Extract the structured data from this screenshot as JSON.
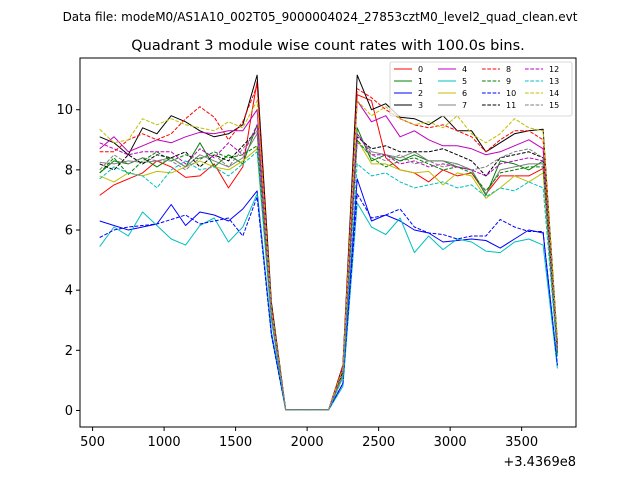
{
  "suptitle": "Data file: modeM0/AS1A10_002T05_9000004024_27853cztM0_level2_quad_clean.evt",
  "chart_data": {
    "type": "line",
    "title": "Quadrant 3 module wise count rates with 100.0s bins.",
    "xlabel": "",
    "ylabel": "",
    "x_offset_label": "+3.4369e8",
    "xlim": [
      412,
      3880
    ],
    "ylim": [
      -0.55,
      11.72
    ],
    "xticks": [
      500,
      1000,
      1500,
      2000,
      2500,
      3000,
      3500
    ],
    "xtick_labels": [
      "500",
      "1000",
      "1500",
      "2000",
      "2500",
      "3000",
      "3500"
    ],
    "yticks": [
      0,
      2,
      4,
      6,
      8,
      10
    ],
    "ytick_labels": [
      "0",
      "2",
      "4",
      "6",
      "8",
      "10"
    ],
    "grid": false,
    "legend_position": "top-right",
    "x": [
      550,
      650,
      750,
      850,
      950,
      1050,
      1150,
      1250,
      1350,
      1450,
      1550,
      1650,
      1750,
      1850,
      1950,
      2050,
      2150,
      2250,
      2350,
      2450,
      2550,
      2650,
      2750,
      2850,
      2950,
      3050,
      3150,
      3250,
      3350,
      3450,
      3550,
      3650,
      3750
    ],
    "series": [
      {
        "name": "0",
        "color": "#ff0000",
        "dash": "solid",
        "values": [
          7.15,
          7.5,
          7.7,
          7.9,
          8.3,
          8.1,
          7.75,
          7.8,
          8.2,
          7.4,
          8.1,
          10.95,
          3.4,
          0.02,
          0.02,
          0.02,
          0.02,
          1.4,
          10.5,
          10.3,
          8.4,
          8.0,
          7.9,
          7.6,
          8.0,
          7.8,
          7.9,
          7.2,
          7.8,
          7.8,
          7.8,
          8.05,
          2.1
        ]
      },
      {
        "name": "1",
        "color": "#008000",
        "dash": "solid",
        "values": [
          7.9,
          8.3,
          8.2,
          8.4,
          8.1,
          8.4,
          8.1,
          8.9,
          8.1,
          8.5,
          8.2,
          9.5,
          3.1,
          0.02,
          0.02,
          0.02,
          0.02,
          1.2,
          9.4,
          8.3,
          8.5,
          8.3,
          8.5,
          8.3,
          8.3,
          8.1,
          8.0,
          7.15,
          8.3,
          8.2,
          8.0,
          8.3,
          1.9
        ]
      },
      {
        "name": "2",
        "color": "#0000ff",
        "dash": "solid",
        "values": [
          6.3,
          6.15,
          6.0,
          6.1,
          6.2,
          6.85,
          6.15,
          6.6,
          6.5,
          6.3,
          6.7,
          7.3,
          2.6,
          0.02,
          0.02,
          0.02,
          0.02,
          0.9,
          7.7,
          6.3,
          6.5,
          6.3,
          6.0,
          5.9,
          5.6,
          5.65,
          5.7,
          5.65,
          5.4,
          5.7,
          6.0,
          5.9,
          1.5
        ]
      },
      {
        "name": "3",
        "color": "#000000",
        "dash": "solid",
        "values": [
          9.1,
          8.9,
          8.5,
          9.4,
          9.2,
          9.8,
          9.6,
          9.3,
          9.1,
          9.2,
          9.5,
          11.15,
          3.6,
          0.02,
          0.02,
          0.02,
          0.02,
          1.5,
          11.15,
          10.0,
          10.2,
          9.75,
          9.7,
          9.5,
          9.8,
          9.3,
          9.3,
          8.6,
          8.9,
          9.2,
          9.3,
          9.35,
          2.3
        ]
      },
      {
        "name": "4",
        "color": "#bf00bf",
        "dash": "solid",
        "values": [
          8.7,
          9.1,
          8.6,
          8.8,
          9.0,
          8.9,
          9.1,
          9.25,
          9.2,
          9.3,
          9.3,
          10.0,
          3.3,
          0.02,
          0.02,
          0.02,
          0.02,
          1.4,
          10.3,
          9.6,
          9.8,
          9.1,
          9.3,
          9.0,
          8.8,
          8.8,
          8.7,
          8.5,
          8.6,
          8.8,
          9.0,
          8.7,
          2.2
        ]
      },
      {
        "name": "5",
        "color": "#00bfbf",
        "dash": "solid",
        "values": [
          5.45,
          6.1,
          5.8,
          6.6,
          6.15,
          5.7,
          5.5,
          6.15,
          6.4,
          5.6,
          6.1,
          7.2,
          2.5,
          0.02,
          0.02,
          0.02,
          0.02,
          0.8,
          6.9,
          6.1,
          5.85,
          6.4,
          5.25,
          5.8,
          5.35,
          5.7,
          5.6,
          5.3,
          5.25,
          5.6,
          5.7,
          5.5,
          1.4
        ]
      },
      {
        "name": "6",
        "color": "#bfbf00",
        "dash": "solid",
        "values": [
          7.8,
          7.6,
          7.9,
          7.8,
          7.95,
          7.9,
          8.1,
          8.3,
          8.1,
          8.0,
          8.3,
          8.7,
          3.0,
          0.02,
          0.02,
          0.02,
          0.02,
          1.1,
          9.0,
          8.2,
          8.2,
          8.0,
          7.9,
          7.95,
          7.5,
          7.9,
          7.8,
          7.05,
          7.4,
          7.8,
          7.6,
          7.9,
          1.8
        ]
      },
      {
        "name": "7",
        "color": "#808080",
        "dash": "solid",
        "values": [
          8.25,
          8.2,
          8.3,
          8.25,
          8.3,
          8.4,
          8.1,
          8.5,
          8.3,
          8.1,
          8.4,
          9.2,
          3.2,
          0.02,
          0.02,
          0.02,
          0.02,
          1.2,
          9.2,
          8.6,
          8.5,
          8.4,
          8.6,
          8.3,
          8.3,
          8.2,
          8.0,
          7.2,
          8.0,
          8.1,
          8.2,
          8.2,
          1.9
        ]
      },
      {
        "name": "8",
        "color": "#ff0000",
        "dash": "dashed",
        "values": [
          8.6,
          8.6,
          9.0,
          9.2,
          9.0,
          9.2,
          9.7,
          10.1,
          9.75,
          9.0,
          9.6,
          10.8,
          3.5,
          0.02,
          0.02,
          0.02,
          0.02,
          1.5,
          10.7,
          10.4,
          10.0,
          9.7,
          9.5,
          9.4,
          9.5,
          9.3,
          9.1,
          8.6,
          9.0,
          9.3,
          9.3,
          9.0,
          2.2
        ]
      },
      {
        "name": "9",
        "color": "#008000",
        "dash": "dashed",
        "values": [
          7.9,
          8.4,
          7.85,
          8.3,
          8.6,
          8.3,
          8.5,
          8.35,
          8.6,
          8.4,
          8.5,
          8.8,
          3.1,
          0.02,
          0.02,
          0.02,
          0.02,
          1.2,
          9.0,
          8.4,
          8.1,
          8.3,
          8.4,
          8.2,
          8.0,
          8.1,
          7.9,
          7.3,
          7.9,
          8.0,
          8.1,
          8.1,
          1.9
        ]
      },
      {
        "name": "10",
        "color": "#0000ff",
        "dash": "dashed",
        "values": [
          5.75,
          6.0,
          6.1,
          6.15,
          6.2,
          6.35,
          6.5,
          6.2,
          6.3,
          6.4,
          5.8,
          7.1,
          2.5,
          0.02,
          0.02,
          0.02,
          0.02,
          0.9,
          7.2,
          6.4,
          6.5,
          6.7,
          6.1,
          5.9,
          5.85,
          5.7,
          5.8,
          5.8,
          6.35,
          6.1,
          5.95,
          5.95,
          1.5
        ]
      },
      {
        "name": "11",
        "color": "#000000",
        "dash": "dashed",
        "values": [
          8.2,
          8.0,
          8.5,
          8.2,
          8.5,
          8.4,
          8.6,
          8.1,
          8.5,
          8.3,
          8.8,
          9.3,
          3.2,
          0.02,
          0.02,
          0.02,
          0.02,
          1.3,
          9.1,
          8.7,
          8.8,
          8.6,
          8.6,
          8.6,
          8.7,
          8.5,
          8.3,
          7.8,
          8.4,
          8.5,
          8.6,
          8.4,
          2.0
        ]
      },
      {
        "name": "12",
        "color": "#bf00bf",
        "dash": "dashed",
        "values": [
          8.9,
          8.7,
          8.5,
          8.6,
          8.6,
          8.6,
          8.2,
          8.7,
          8.4,
          8.9,
          8.5,
          9.5,
          3.2,
          0.02,
          0.02,
          0.02,
          0.02,
          1.4,
          9.2,
          8.5,
          8.5,
          8.2,
          8.3,
          8.1,
          8.2,
          8.1,
          8.0,
          7.8,
          8.2,
          8.3,
          8.4,
          8.3,
          2.0
        ]
      },
      {
        "name": "13",
        "color": "#00bfbf",
        "dash": "dashed",
        "values": [
          7.7,
          8.1,
          7.9,
          7.8,
          7.4,
          8.0,
          8.3,
          8.0,
          8.1,
          7.8,
          8.2,
          8.6,
          3.0,
          0.02,
          0.02,
          0.02,
          0.02,
          1.1,
          8.2,
          7.8,
          7.9,
          7.6,
          7.4,
          7.5,
          7.6,
          7.4,
          7.5,
          7.1,
          7.4,
          7.3,
          7.6,
          7.4,
          1.8
        ]
      },
      {
        "name": "14",
        "color": "#bfbf00",
        "dash": "dashed",
        "values": [
          9.35,
          8.9,
          9.0,
          9.7,
          9.5,
          9.7,
          9.5,
          9.4,
          9.3,
          9.6,
          9.4,
          10.3,
          3.4,
          0.02,
          0.02,
          0.02,
          0.02,
          1.4,
          10.3,
          9.8,
          10.1,
          9.7,
          9.5,
          9.6,
          9.4,
          9.8,
          9.2,
          8.9,
          9.2,
          9.7,
          9.4,
          9.3,
          2.3
        ]
      },
      {
        "name": "15",
        "color": "#808080",
        "dash": "dashed",
        "values": [
          8.0,
          8.5,
          8.2,
          8.4,
          8.3,
          8.3,
          8.0,
          8.4,
          8.5,
          8.1,
          8.7,
          9.3,
          3.2,
          0.02,
          0.02,
          0.02,
          0.02,
          1.2,
          8.9,
          8.5,
          8.3,
          8.5,
          8.2,
          8.3,
          8.1,
          8.2,
          8.0,
          8.1,
          8.4,
          8.6,
          8.7,
          8.4,
          2.0
        ]
      }
    ]
  }
}
